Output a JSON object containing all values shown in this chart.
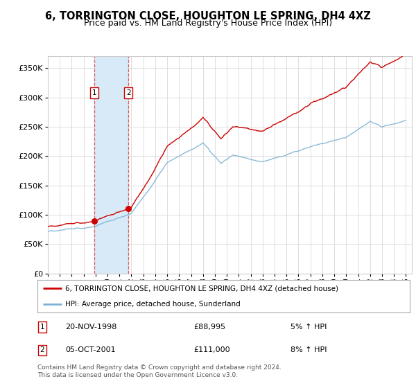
{
  "title": "6, TORRINGTON CLOSE, HOUGHTON LE SPRING, DH4 4XZ",
  "subtitle": "Price paid vs. HM Land Registry's House Price Index (HPI)",
  "ylim": [
    0,
    370000
  ],
  "yticks": [
    0,
    50000,
    100000,
    150000,
    200000,
    250000,
    300000,
    350000
  ],
  "ytick_labels": [
    "£0",
    "£50K",
    "£100K",
    "£150K",
    "£200K",
    "£250K",
    "£300K",
    "£350K"
  ],
  "sale1_date": 1998.9,
  "sale1_price": 88995,
  "sale2_date": 2001.75,
  "sale2_price": 111000,
  "red_line_color": "#cc0000",
  "blue_line_color": "#7fb3d3",
  "shade_color": "#d8eaf7",
  "legend_label_red": "6, TORRINGTON CLOSE, HOUGHTON LE SPRING, DH4 4XZ (detached house)",
  "legend_label_blue": "HPI: Average price, detached house, Sunderland",
  "annotation1_date": "20-NOV-1998",
  "annotation1_price": "£88,995",
  "annotation1_hpi": "5% ↑ HPI",
  "annotation2_date": "05-OCT-2001",
  "annotation2_price": "£111,000",
  "annotation2_hpi": "8% ↑ HPI",
  "footer": "Contains HM Land Registry data © Crown copyright and database right 2024.\nThis data is licensed under the Open Government Licence v3.0.",
  "bg_color": "#ffffff",
  "grid_color": "#dddddd"
}
